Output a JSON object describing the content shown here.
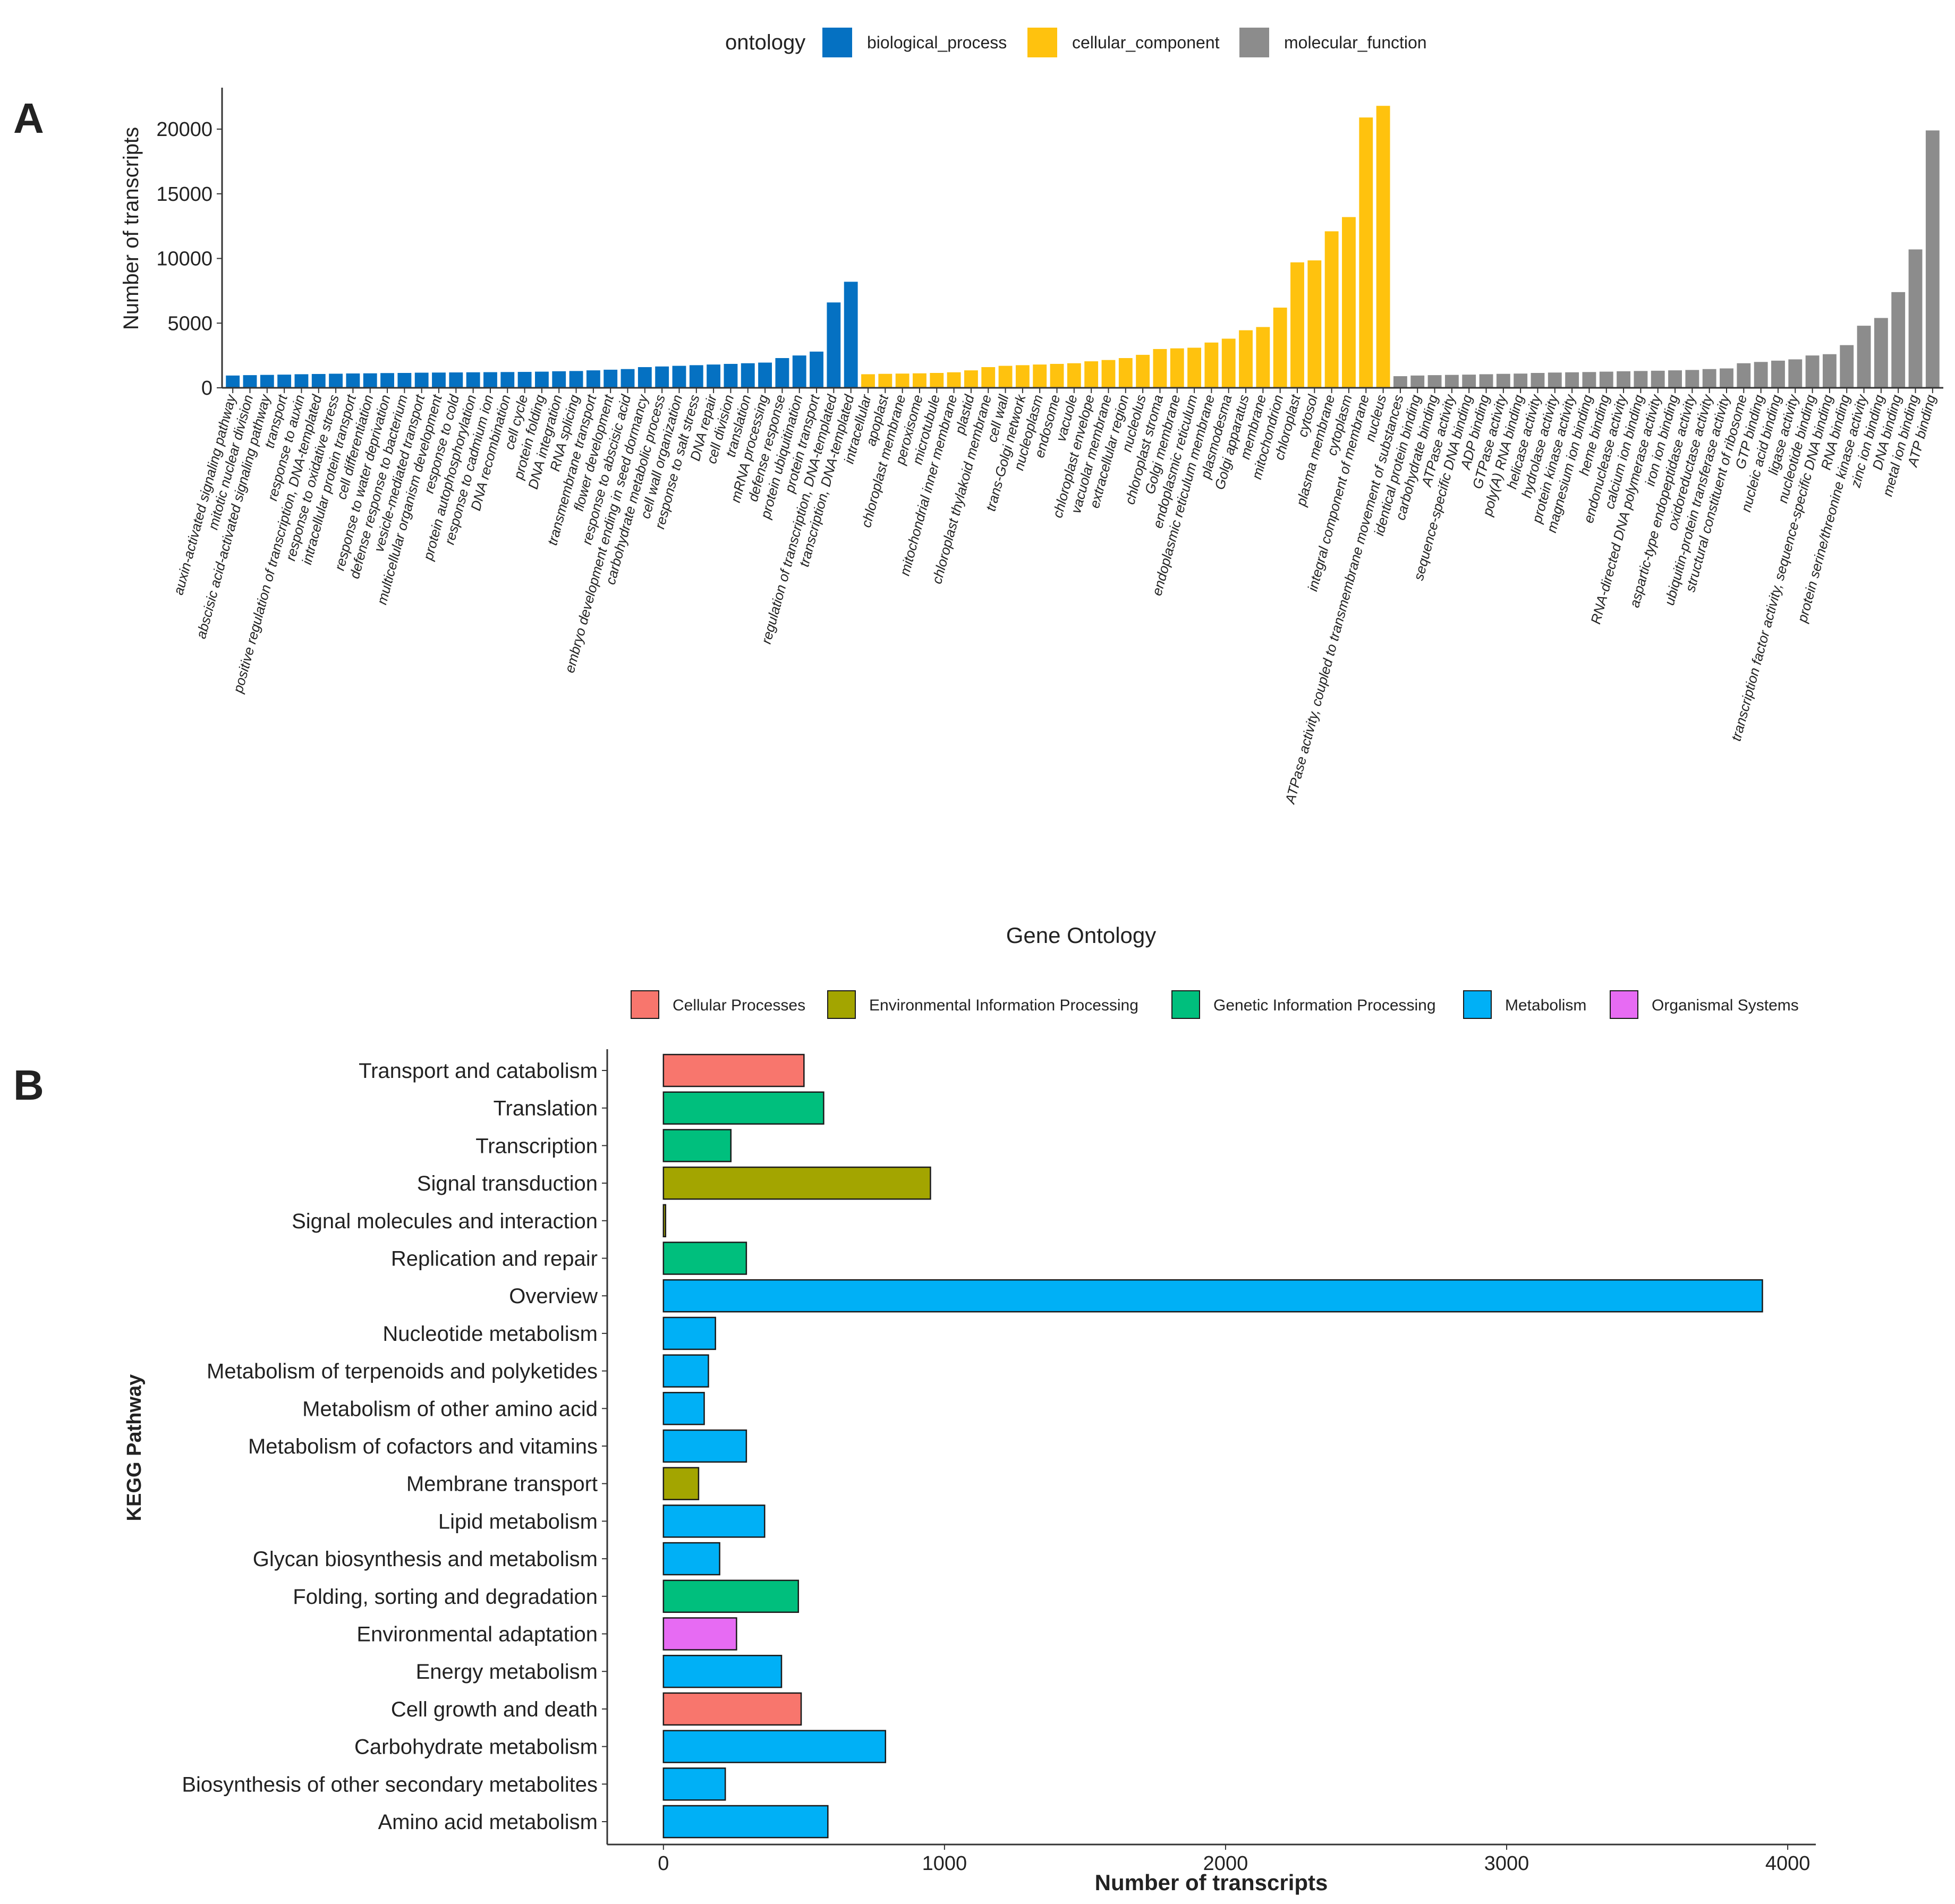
{
  "chart_data": [
    {
      "panel": "A",
      "type": "bar",
      "title": "",
      "xlabel": "Gene Ontology",
      "ylabel": "Number of transcripts",
      "ylim": [
        0,
        23000
      ],
      "yticks": [
        0,
        5000,
        10000,
        15000,
        20000
      ],
      "grid": false,
      "legend": {
        "title": "ontology",
        "position": "top",
        "entries": [
          {
            "name": "biological_process",
            "color": "#0571C2"
          },
          {
            "name": "cellular_component",
            "color": "#FFC20E"
          },
          {
            "name": "molecular_function",
            "color": "#8C8C8C"
          }
        ]
      },
      "series": [
        {
          "name": "biological_process",
          "color": "#0571C2",
          "categories": [
            "auxin-activated signaling pathway",
            "mitotic nuclear division",
            "abscisic acid-activated signaling pathway",
            "transport",
            "response to auxin",
            "positive regulation of transcription, DNA-templated",
            "response to oxidative stress",
            "intracellular protein transport",
            "cell differentiation",
            "response to water deprivation",
            "defense response to bacterium",
            "vesicle-mediated transport",
            "multicellular organism development",
            "response to cold",
            "protein autophosphorylation",
            "response to cadmium ion",
            "DNA recombination",
            "cell cycle",
            "protein folding",
            "DNA integration",
            "RNA splicing",
            "transmembrane transport",
            "flower development",
            "response to abscisic acid",
            "embryo development ending in seed dormancy",
            "carbohydrate metabolic process",
            "cell wall organization",
            "response to salt stress",
            "DNA repair",
            "cell division",
            "translation",
            "mRNA processing",
            "defense response",
            "protein ubiquitination",
            "protein transport",
            "regulation of transcription, DNA-templated",
            "transcription, DNA-templated"
          ],
          "values": [
            950,
            980,
            1000,
            1020,
            1050,
            1070,
            1090,
            1110,
            1120,
            1140,
            1150,
            1170,
            1180,
            1190,
            1200,
            1210,
            1220,
            1230,
            1250,
            1280,
            1300,
            1350,
            1400,
            1450,
            1600,
            1650,
            1700,
            1750,
            1800,
            1850,
            1900,
            1950,
            2300,
            2500,
            2800,
            6600,
            8200
          ]
        },
        {
          "name": "cellular_component",
          "color": "#FFC20E",
          "categories": [
            "intracellular",
            "apoplast",
            "chloroplast membrane",
            "peroxisome",
            "microtubule",
            "mitochondrial inner membrane",
            "plastid",
            "chloroplast thylakoid membrane",
            "cell wall",
            "trans-Golgi network",
            "nucleoplasm",
            "endosome",
            "vacuole",
            "chloroplast envelope",
            "vacuolar membrane",
            "extracellular region",
            "nucleolus",
            "chloroplast stroma",
            "Golgi membrane",
            "endoplasmic reticulum",
            "endoplasmic reticulum membrane",
            "plasmodesma",
            "Golgi apparatus",
            "membrane",
            "mitochondrion",
            "chloroplast",
            "cytosol",
            "plasma membrane",
            "cytoplasm",
            "integral component of membrane",
            "nucleus"
          ],
          "values": [
            1050,
            1080,
            1100,
            1120,
            1150,
            1200,
            1350,
            1600,
            1700,
            1750,
            1800,
            1850,
            1900,
            2050,
            2150,
            2300,
            2550,
            3000,
            3050,
            3100,
            3500,
            3800,
            4450,
            4700,
            6200,
            9700,
            9850,
            12100,
            13200,
            20900,
            21800
          ]
        },
        {
          "name": "molecular_function",
          "color": "#8C8C8C",
          "categories": [
            "ATPase activity, coupled to transmembrane movement of substances",
            "identical protein binding",
            "carbohydrate binding",
            "ATPase activity",
            "sequence-specific DNA binding",
            "ADP binding",
            "GTPase activity",
            "poly(A) RNA binding",
            "helicase activity",
            "hydrolase activity",
            "protein kinase activity",
            "magnesium ion binding",
            "heme binding",
            "endonuclease activity",
            "calcium ion binding",
            "RNA-directed DNA polymerase activity",
            "iron ion binding",
            "aspartic-type endopeptidase activity",
            "oxidoreductase activity",
            "ubiquitin-protein transferase activity",
            "structural constituent of ribosome",
            "GTP binding",
            "nucleic acid binding",
            "ligase activity",
            "nucleotide binding",
            "transcription factor activity, sequence-specific DNA binding",
            "RNA binding",
            "protein serine/threonine kinase activity",
            "zinc ion binding",
            "DNA binding",
            "metal ion binding",
            "ATP binding"
          ],
          "values": [
            900,
            950,
            980,
            1000,
            1020,
            1050,
            1080,
            1100,
            1150,
            1180,
            1200,
            1220,
            1250,
            1280,
            1300,
            1320,
            1350,
            1380,
            1450,
            1500,
            1900,
            2000,
            2100,
            2200,
            2500,
            2600,
            3300,
            4800,
            5400,
            7400,
            10700,
            19900
          ]
        }
      ]
    },
    {
      "panel": "B",
      "type": "bar",
      "orientation": "horizontal",
      "title": "",
      "xlabel": "Number of transcripts",
      "ylabel": "KEGG Pathway",
      "xlim": [
        -200,
        4100
      ],
      "xticks": [
        0,
        1000,
        2000,
        3000,
        4000
      ],
      "grid": false,
      "legend": {
        "position": "top",
        "entries": [
          {
            "name": "Cellular Processes",
            "color": "#F8766D"
          },
          {
            "name": "Environmental Information Processing",
            "color": "#A3A500"
          },
          {
            "name": "Genetic Information Processing",
            "color": "#00BF7D"
          },
          {
            "name": "Metabolism",
            "color": "#00B0F6"
          },
          {
            "name": "Organismal Systems",
            "color": "#E76BF3"
          }
        ]
      },
      "categories": [
        "Transport and catabolism",
        "Translation",
        "Transcription",
        "Signal transduction",
        "Signal molecules and interaction",
        "Replication and repair",
        "Overview",
        "Nucleotide metabolism",
        "Metabolism of terpenoids and polyketides",
        "Metabolism of other amino acid",
        "Metabolism of cofactors and vitamins",
        "Membrane transport",
        "Lipid metabolism",
        "Glycan biosynthesis and metabolism",
        "Folding, sorting and degradation",
        "Environmental adaptation",
        "Energy metabolism",
        "Cell growth and death",
        "Carbohydrate metabolism",
        "Biosynthesis of other secondary metabolites",
        "Amino acid metabolism"
      ],
      "values": [
        500,
        570,
        240,
        950,
        5,
        295,
        3910,
        185,
        160,
        145,
        295,
        125,
        360,
        200,
        480,
        260,
        420,
        490,
        790,
        220,
        585
      ],
      "groups": [
        "Cellular Processes",
        "Genetic Information Processing",
        "Genetic Information Processing",
        "Environmental Information Processing",
        "Environmental Information Processing",
        "Genetic Information Processing",
        "Metabolism",
        "Metabolism",
        "Metabolism",
        "Metabolism",
        "Metabolism",
        "Environmental Information Processing",
        "Metabolism",
        "Metabolism",
        "Genetic Information Processing",
        "Organismal Systems",
        "Metabolism",
        "Cellular Processes",
        "Metabolism",
        "Metabolism",
        "Metabolism"
      ]
    }
  ],
  "panel_labels": {
    "a": "A",
    "b": "B"
  }
}
